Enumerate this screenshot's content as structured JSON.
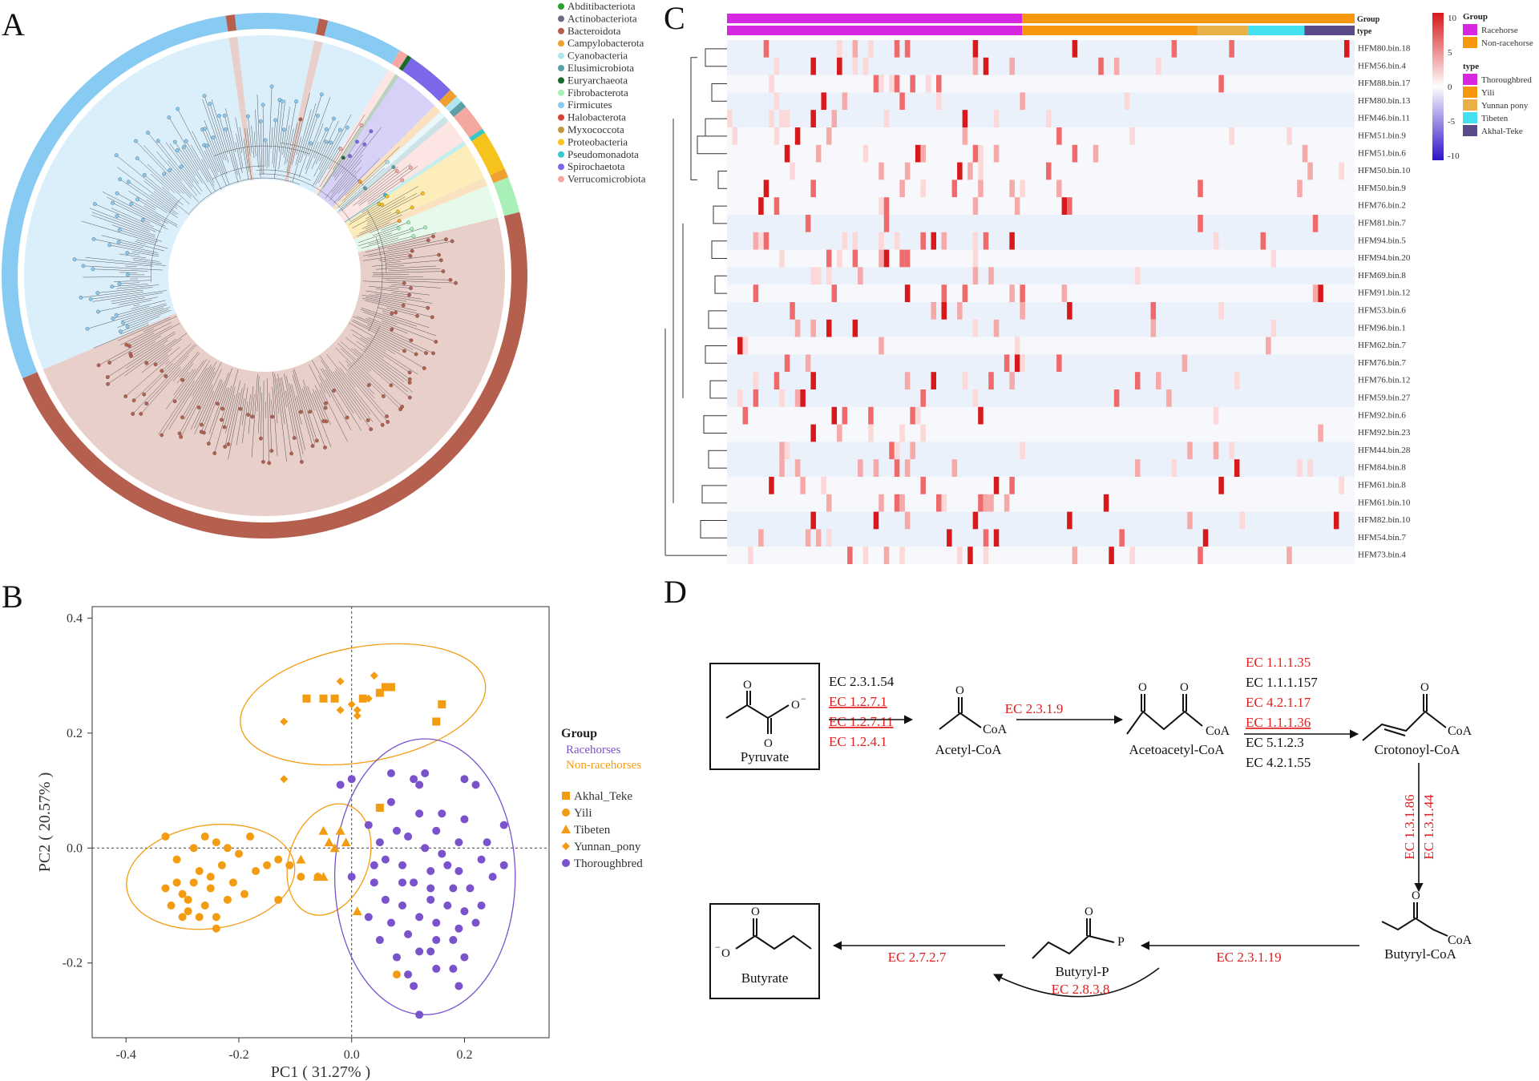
{
  "panels": {
    "a": "A",
    "b": "B",
    "c": "C",
    "d": "D"
  },
  "panel_a": {
    "legend": [
      {
        "name": "Abditibacteriota",
        "color": "#2ca02c"
      },
      {
        "name": "Actinobacteriota",
        "color": "#6b6b85"
      },
      {
        "name": "Bacteroidota",
        "color": "#b5604f"
      },
      {
        "name": "Campylobacterota",
        "color": "#f0a030"
      },
      {
        "name": "Cyanobacteria",
        "color": "#b0e4ef"
      },
      {
        "name": "Elusimicrobiota",
        "color": "#5aa0a6"
      },
      {
        "name": "Euryarchaeota",
        "color": "#1a6a2e"
      },
      {
        "name": "Fibrobacterota",
        "color": "#a8f0b8"
      },
      {
        "name": "Firmicutes",
        "color": "#88cbf2"
      },
      {
        "name": "Halobacterota",
        "color": "#d9403a"
      },
      {
        "name": "Myxococcota",
        "color": "#c09a3a"
      },
      {
        "name": "Proteobacteria",
        "color": "#f6c21c"
      },
      {
        "name": "Pseudomonadota",
        "color": "#38c8c8"
      },
      {
        "name": "Spirochaetota",
        "color": "#7a68e8"
      },
      {
        "name": "Verrucomicrobiota",
        "color": "#f5a8a0"
      }
    ]
  },
  "chart_data": [
    {
      "type": "scatter",
      "xlabel": "PC1 ( 31.27% )",
      "ylabel": "PC2 ( 20.57% )",
      "xlim": [
        -0.46,
        0.35
      ],
      "ylim": [
        -0.33,
        0.42
      ],
      "xticks": [
        "-0.4",
        "-0.2",
        "0.0",
        "0.2"
      ],
      "yticks": [
        "0.4",
        "0.2",
        "0.0",
        "-0.2"
      ],
      "legend_group_title": "Group",
      "groups": [
        {
          "name": "Racehorses",
          "color": "#7a52cc"
        },
        {
          "name": "Non-racehorses",
          "color": "#f39c12"
        }
      ],
      "series": [
        {
          "name": "Akhal_Teke",
          "marker": "square",
          "color": "#f39c12",
          "points": [
            [
              -0.08,
              0.26
            ],
            [
              0.02,
              0.26
            ],
            [
              0.07,
              0.28
            ],
            [
              0.06,
              0.28
            ],
            [
              -0.05,
              0.26
            ],
            [
              0.05,
              0.27
            ],
            [
              0.16,
              0.25
            ],
            [
              0.15,
              0.22
            ],
            [
              -0.03,
              0.26
            ],
            [
              0.05,
              0.07
            ]
          ]
        },
        {
          "name": "Yili",
          "marker": "circle",
          "color": "#f39c12",
          "points": [
            [
              -0.33,
              -0.07
            ],
            [
              -0.31,
              -0.06
            ],
            [
              -0.3,
              -0.08
            ],
            [
              -0.28,
              -0.06
            ],
            [
              -0.27,
              -0.04
            ],
            [
              -0.25,
              -0.05
            ],
            [
              -0.23,
              -0.03
            ],
            [
              -0.21,
              -0.06
            ],
            [
              -0.19,
              -0.08
            ],
            [
              -0.17,
              -0.04
            ],
            [
              -0.15,
              -0.03
            ],
            [
              -0.13,
              -0.02
            ],
            [
              -0.32,
              -0.1
            ],
            [
              -0.29,
              -0.11
            ],
            [
              -0.26,
              -0.1
            ],
            [
              -0.24,
              -0.12
            ],
            [
              -0.22,
              -0.09
            ],
            [
              -0.31,
              -0.02
            ],
            [
              -0.28,
              0.0
            ],
            [
              -0.26,
              0.02
            ],
            [
              -0.24,
              0.01
            ],
            [
              -0.22,
              0.0
            ],
            [
              -0.2,
              -0.01
            ],
            [
              -0.18,
              0.02
            ],
            [
              -0.25,
              -0.07
            ],
            [
              -0.27,
              -0.12
            ],
            [
              -0.3,
              -0.12
            ],
            [
              -0.29,
              -0.09
            ],
            [
              -0.33,
              0.02
            ],
            [
              -0.11,
              -0.03
            ],
            [
              -0.09,
              -0.05
            ],
            [
              -0.06,
              -0.05
            ],
            [
              -0.13,
              -0.09
            ],
            [
              -0.24,
              -0.14
            ],
            [
              0.08,
              -0.22
            ]
          ]
        },
        {
          "name": "Tibeten",
          "marker": "triangle",
          "color": "#f39c12",
          "points": [
            [
              -0.05,
              0.03
            ],
            [
              -0.04,
              0.01
            ],
            [
              -0.02,
              0.03
            ],
            [
              -0.01,
              0.01
            ],
            [
              -0.09,
              -0.02
            ],
            [
              -0.06,
              -0.05
            ],
            [
              -0.05,
              -0.05
            ],
            [
              -0.03,
              0.0
            ],
            [
              0.01,
              -0.11
            ]
          ]
        },
        {
          "name": "Yunnan_pony",
          "marker": "diamond",
          "color": "#f39c12",
          "points": [
            [
              -0.02,
              0.29
            ],
            [
              0.0,
              0.25
            ],
            [
              0.03,
              0.26
            ],
            [
              0.01,
              0.24
            ],
            [
              -0.02,
              0.24
            ],
            [
              0.01,
              0.23
            ],
            [
              -0.12,
              0.22
            ],
            [
              -0.12,
              0.12
            ],
            [
              0.04,
              0.3
            ]
          ]
        },
        {
          "name": "Thoroughbred",
          "marker": "circle",
          "color": "#7a52cc",
          "points": [
            [
              -0.02,
              0.11
            ],
            [
              0.0,
              0.12
            ],
            [
              0.07,
              0.13
            ],
            [
              0.11,
              0.12
            ],
            [
              0.12,
              0.11
            ],
            [
              0.13,
              0.13
            ],
            [
              0.2,
              0.12
            ],
            [
              0.22,
              0.11
            ],
            [
              0.07,
              0.08
            ],
            [
              0.12,
              0.06
            ],
            [
              0.16,
              0.06
            ],
            [
              0.2,
              0.05
            ],
            [
              0.27,
              0.04
            ],
            [
              0.03,
              0.04
            ],
            [
              0.08,
              0.03
            ],
            [
              0.1,
              0.02
            ],
            [
              0.15,
              0.03
            ],
            [
              0.19,
              0.01
            ],
            [
              0.24,
              0.01
            ],
            [
              0.05,
              0.01
            ],
            [
              0.13,
              0.0
            ],
            [
              0.16,
              -0.01
            ],
            [
              0.06,
              -0.02
            ],
            [
              0.09,
              -0.03
            ],
            [
              0.14,
              -0.04
            ],
            [
              0.19,
              -0.04
            ],
            [
              0.23,
              -0.02
            ],
            [
              0.27,
              -0.03
            ],
            [
              0.0,
              -0.05
            ],
            [
              0.04,
              -0.06
            ],
            [
              0.11,
              -0.06
            ],
            [
              0.18,
              -0.07
            ],
            [
              0.21,
              -0.07
            ],
            [
              0.25,
              -0.05
            ],
            [
              0.06,
              -0.09
            ],
            [
              0.09,
              -0.1
            ],
            [
              0.14,
              -0.09
            ],
            [
              0.17,
              -0.1
            ],
            [
              0.2,
              -0.11
            ],
            [
              0.23,
              -0.1
            ],
            [
              0.03,
              -0.12
            ],
            [
              0.07,
              -0.13
            ],
            [
              0.12,
              -0.12
            ],
            [
              0.15,
              -0.13
            ],
            [
              0.19,
              -0.14
            ],
            [
              0.22,
              -0.13
            ],
            [
              0.05,
              -0.16
            ],
            [
              0.1,
              -0.15
            ],
            [
              0.15,
              -0.16
            ],
            [
              0.18,
              -0.16
            ],
            [
              0.08,
              -0.19
            ],
            [
              0.12,
              -0.18
            ],
            [
              0.14,
              -0.18
            ],
            [
              0.2,
              -0.19
            ],
            [
              0.1,
              -0.22
            ],
            [
              0.15,
              -0.21
            ],
            [
              0.18,
              -0.21
            ],
            [
              0.11,
              -0.24
            ],
            [
              0.19,
              -0.24
            ],
            [
              0.12,
              -0.29
            ],
            [
              0.09,
              -0.06
            ],
            [
              0.14,
              -0.07
            ],
            [
              0.04,
              -0.03
            ],
            [
              0.17,
              -0.03
            ]
          ]
        }
      ],
      "ellipses": [
        {
          "color": "#f39c12",
          "cx": 0.02,
          "cy": 0.25,
          "rx": 0.22,
          "ry": 0.1,
          "angle_deg": -10
        },
        {
          "color": "#f39c12",
          "cx": -0.25,
          "cy": -0.05,
          "rx": 0.15,
          "ry": 0.09,
          "angle_deg": -8
        },
        {
          "color": "#f39c12",
          "cx": -0.04,
          "cy": -0.02,
          "rx": 0.07,
          "ry": 0.1,
          "angle_deg": 20
        },
        {
          "color": "#7a52cc",
          "cx": 0.13,
          "cy": -0.05,
          "rx": 0.16,
          "ry": 0.24,
          "angle_deg": 0
        }
      ]
    },
    {
      "type": "heatmap",
      "rows": [
        "HFM80.bin.18",
        "HFM56.bin.4",
        "HFM88.bin.17",
        "HFM80.bin.13",
        "HFM46.bin.11",
        "HFM51.bin.9",
        "HFM51.bin.6",
        "HFM50.bin.10",
        "HFM50.bin.9",
        "HFM76.bin.2",
        "HFM81.bin.7",
        "HFM94.bin.5",
        "HFM94.bin.20",
        "HFM69.bin.8",
        "HFM91.bin.12",
        "HFM53.bin.6",
        "HFM96.bin.1",
        "HFM62.bin.7",
        "HFM76.bin.7",
        "HFM76.bin.12",
        "HFM59.bin.27",
        "HFM92.bin.6",
        "HFM92.bin.23",
        "HFM44.bin.28",
        "HFM84.bin.8",
        "HFM61.bin.8",
        "HFM61.bin.10",
        "HFM82.bin.10",
        "HFM54.bin.7",
        "HFM73.bin.4"
      ],
      "annotation_rows": [
        "Group",
        "type"
      ],
      "group_legend_title": "Group",
      "groups": [
        {
          "name": "Racehorse",
          "color": "#d628e0"
        },
        {
          "name": "Non-racehorse",
          "color": "#f7960f"
        }
      ],
      "type_legend_title": "type",
      "types": [
        {
          "name": "Thoroughbred",
          "color": "#d628e0"
        },
        {
          "name": "Yili",
          "color": "#f7960f"
        },
        {
          "name": "Yunnan pony",
          "color": "#e8b046"
        },
        {
          "name": "Tibeten",
          "color": "#44e0f0"
        },
        {
          "name": "Akhal-Teke",
          "color": "#5a4a88"
        }
      ],
      "type_fraction": [
        0.47,
        0.28,
        0.08,
        0.09,
        0.08
      ],
      "colorbar_ticks": [
        "10",
        "5",
        "0",
        "-5",
        "-10"
      ]
    }
  ],
  "panel_d": {
    "pyruvate": "Pyruvate",
    "acetyl_coa": "Acetyl-CoA",
    "acetoacetyl_coa": "Acetoacetyl-CoA",
    "crotonoyl_coa": "Crotonoyl-CoA",
    "butyryl_coa": "Butyryl-CoA",
    "butyryl_p": "Butyryl-P",
    "butyrate": "Butyrate",
    "coa": "CoA",
    "p": "P",
    "o": "O",
    "o_minus": "O",
    "minus": "−",
    "ec_step1": [
      {
        "text": "EC 2.3.1.54",
        "color": "#111111"
      },
      {
        "text": "EC 1.2.7.1",
        "color": "#e02020"
      },
      {
        "text": "EC 1.2.7.11",
        "color": "#e02020"
      },
      {
        "text": "EC 1.2.4.1",
        "color": "#e02020"
      }
    ],
    "ec_step2": "EC 2.3.1.9",
    "ec_step3": [
      {
        "text": "EC 1.1.1.35",
        "color": "#e02020"
      },
      {
        "text": "EC 1.1.1.157",
        "color": "#111111"
      },
      {
        "text": "EC 4.2.1.17",
        "color": "#e02020"
      },
      {
        "text": "EC 1.1.1.36",
        "color": "#e02020"
      },
      {
        "text": "EC 5.1.2.3",
        "color": "#111111"
      },
      {
        "text": "EC 4.2.1.55",
        "color": "#111111"
      }
    ],
    "ec_step4": [
      "EC 1.3.1.86",
      "EC 1.3.1.44"
    ],
    "ec_step5": "EC 2.3.1.19",
    "ec_step6": "EC 2.8.3.8",
    "ec_step7": "EC 2.7.2.7",
    "red": "#e02020"
  }
}
